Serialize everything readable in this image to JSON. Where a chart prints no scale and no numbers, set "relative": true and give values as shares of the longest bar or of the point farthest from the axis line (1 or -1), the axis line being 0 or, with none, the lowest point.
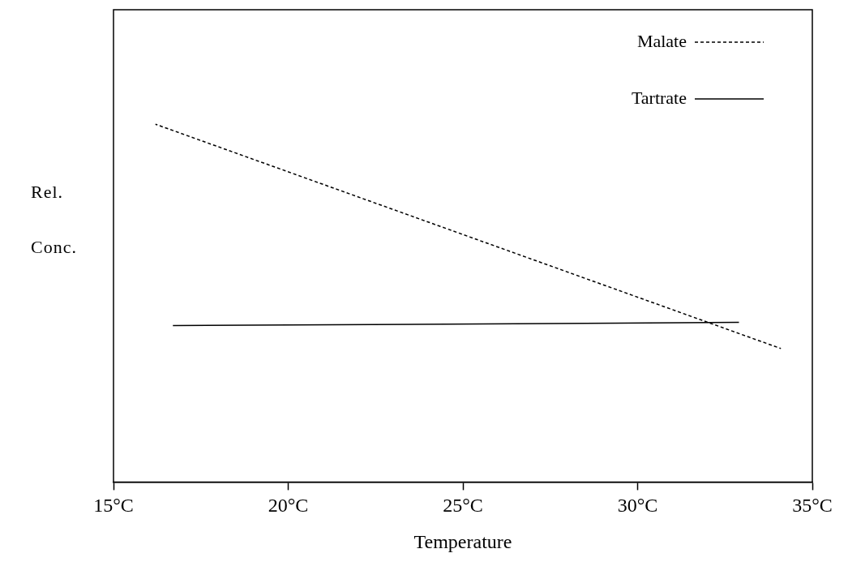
{
  "chart_data": {
    "type": "line",
    "xlabel": "Temperature",
    "ylabel": "Rel. Conc.",
    "relative": true,
    "xlim": [
      15,
      35
    ],
    "xticks": [
      {
        "value": 15,
        "label": "15°C"
      },
      {
        "value": 20,
        "label": "20°C"
      },
      {
        "value": 25,
        "label": "25°C"
      },
      {
        "value": 30,
        "label": "30°C"
      },
      {
        "value": 35,
        "label": "35°C"
      }
    ],
    "grid": false,
    "legend": "top right",
    "marker": "none",
    "series": [
      {
        "name": "Malate",
        "color": "#000000",
        "line_style": "dashed",
        "x": [
          16.2,
          34.1
        ],
        "values": [
          1,
          0.373
        ]
      },
      {
        "name": "Tartrate",
        "color": "#000000",
        "line_style": "solid",
        "x": [
          16.7,
          32.9
        ],
        "values": [
          0.437,
          0.446
        ]
      }
    ]
  }
}
